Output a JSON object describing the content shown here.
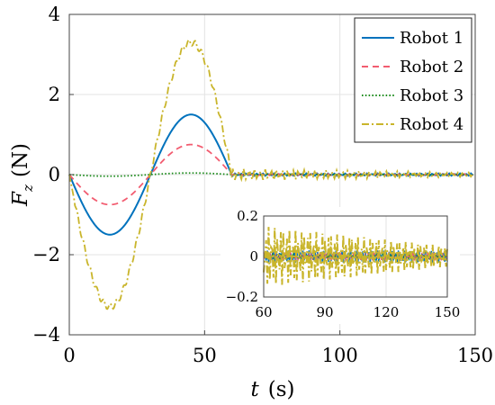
{
  "chart_data": [
    {
      "type": "line",
      "xlabel": "t",
      "xlabel_unit": "(s)",
      "ylabel": "F",
      "ylabel_sub": "z",
      "ylabel_unit": "(N)",
      "xlim": [
        0,
        150
      ],
      "ylim": [
        -4,
        4
      ],
      "xticks": [
        0,
        50,
        100,
        150
      ],
      "yticks": [
        -4,
        -2,
        0,
        2,
        4
      ],
      "xtick_labels": [
        "0",
        "50",
        "100",
        "150"
      ],
      "ytick_labels": [
        "−4",
        "−2",
        "0",
        "2",
        "4"
      ],
      "grid": true,
      "legend_position": "top-right",
      "series": [
        {
          "name": "Robot 1",
          "color": "#0072BD",
          "style": "solid",
          "peak": 1.5
        },
        {
          "name": "Robot 2",
          "color": "#F25C70",
          "style": "dashed",
          "peak": 0.75
        },
        {
          "name": "Robot 3",
          "color": "#1E8C1E",
          "style": "dotted",
          "peak": 0.04
        },
        {
          "name": "Robot 4",
          "color": "#C9B52B",
          "style": "dashdot",
          "peak": 3.3
        }
      ],
      "x": [
        0,
        5,
        10,
        15,
        20,
        25,
        30,
        35,
        40,
        45,
        50,
        55,
        60,
        150
      ],
      "values_description_unused": ""
    },
    {
      "type": "line",
      "inset": true,
      "xlim": [
        60,
        150
      ],
      "ylim": [
        -0.2,
        0.2
      ],
      "xticks": [
        60,
        90,
        120,
        150
      ],
      "yticks": [
        -0.2,
        0,
        0.2
      ],
      "xtick_labels": [
        "60",
        "90",
        "120",
        "150"
      ],
      "ytick_labels": [
        "−0.2",
        "0",
        "0.2"
      ],
      "grid": true,
      "series_amplitude": {
        "Robot 1": 0.03,
        "Robot 2": 0.02,
        "Robot 3": 0.01,
        "Robot 4": [
          0.15,
          0.05
        ]
      }
    }
  ]
}
